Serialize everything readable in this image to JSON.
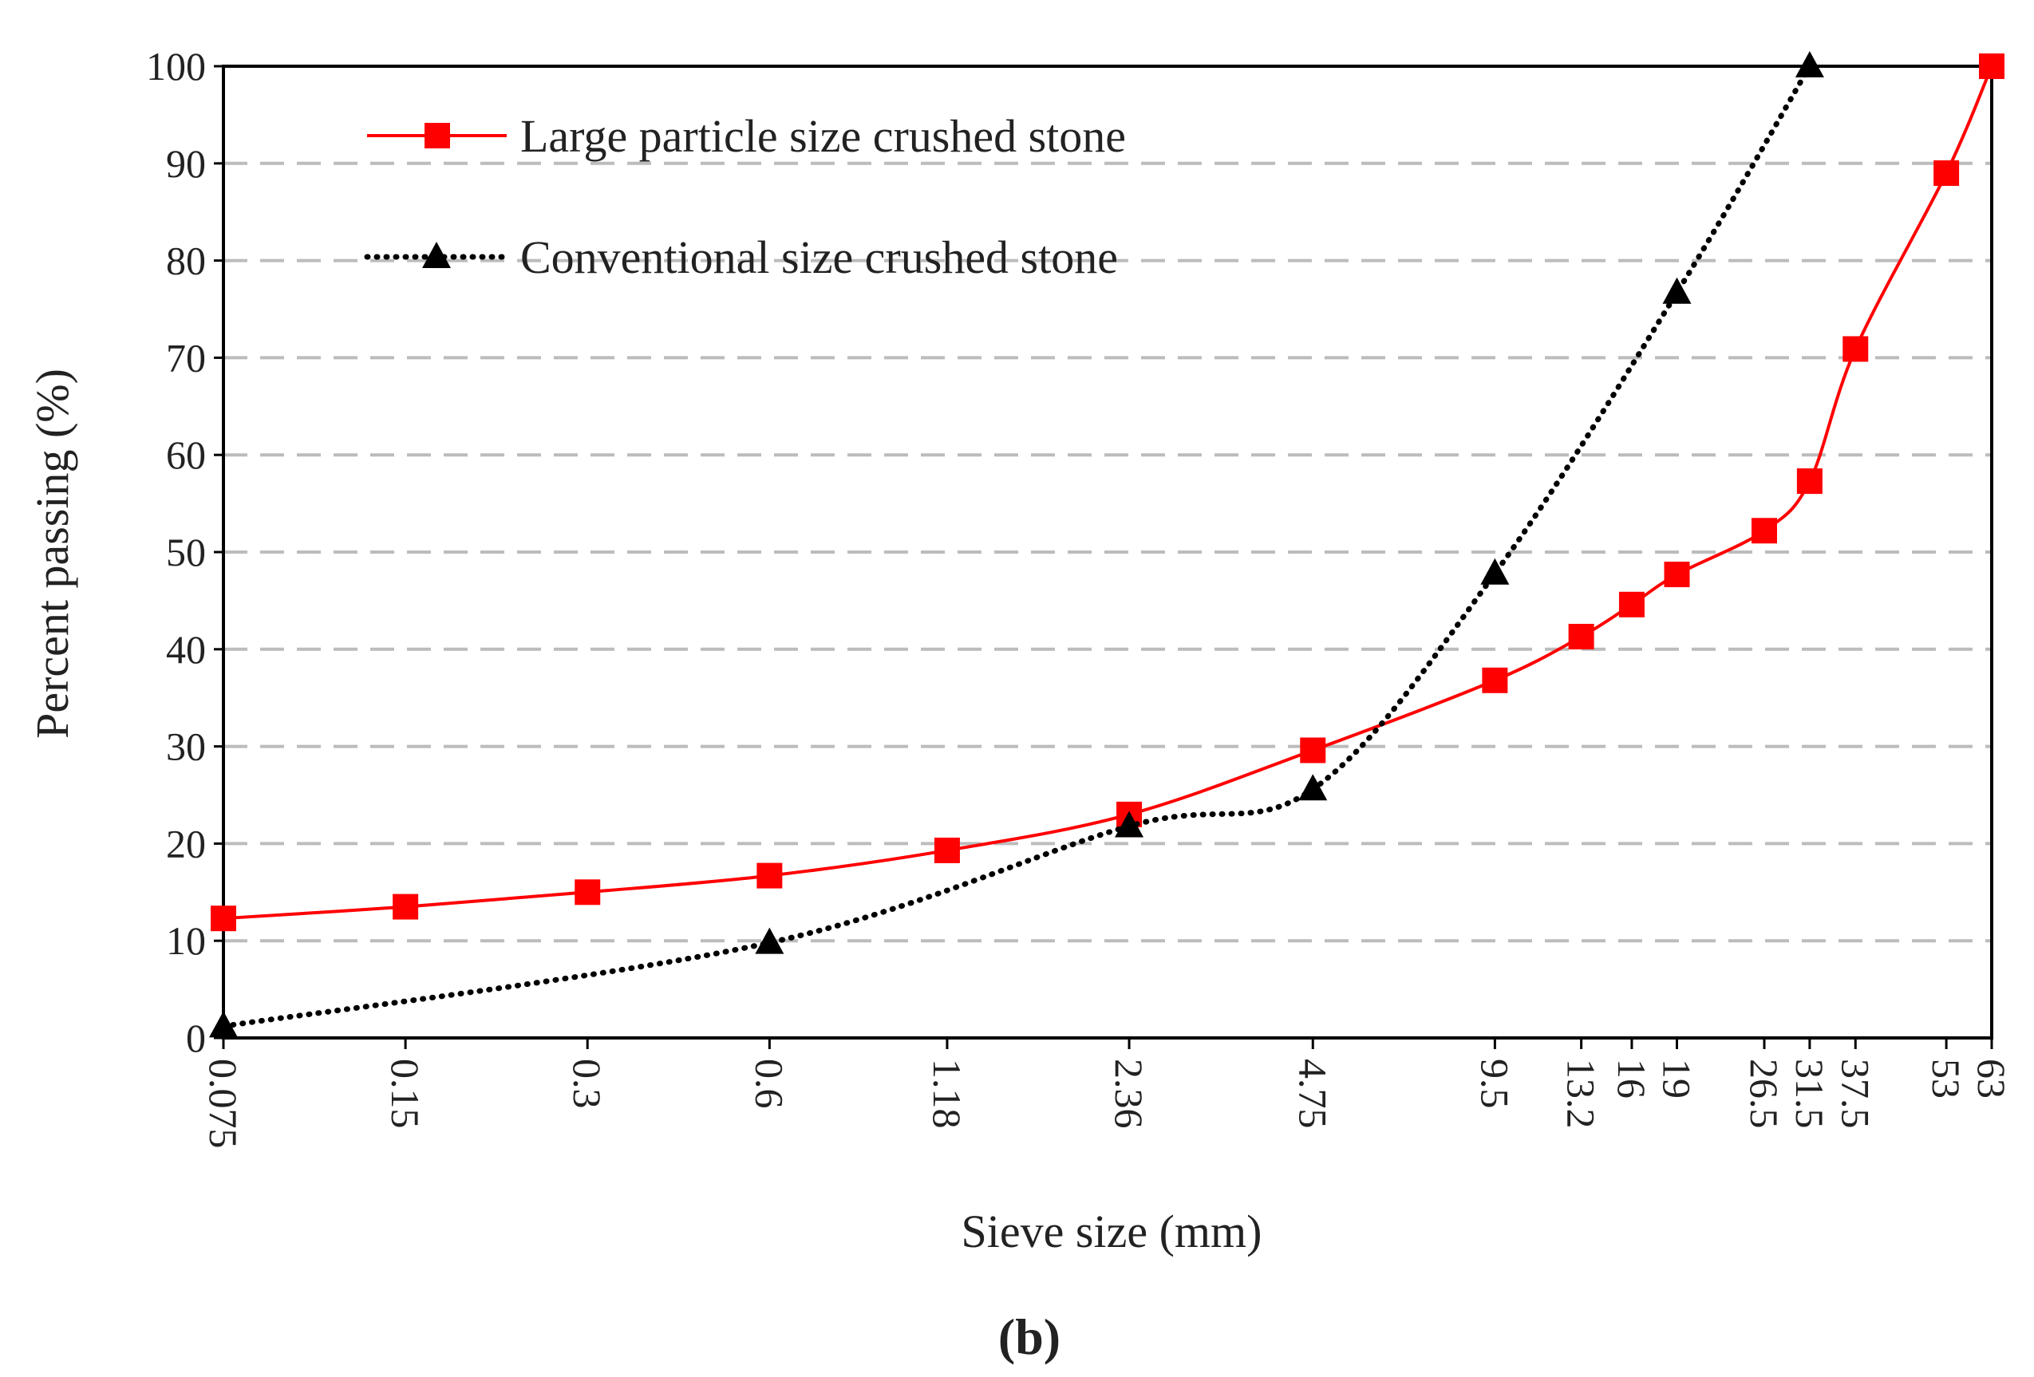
{
  "chart_data": {
    "type": "line",
    "xscale": "categorical-log",
    "xlabel": "Sieve size (mm)",
    "ylabel": "Percent passing (%)",
    "ylim": [
      0,
      100
    ],
    "yticks": [
      "0",
      "10",
      "20",
      "30",
      "40",
      "50",
      "60",
      "70",
      "80",
      "90",
      "100"
    ],
    "grid": "horizontal dashed",
    "legend_position": "top-left",
    "caption": "(b)",
    "x_ticks": [
      "0.075",
      "0.15",
      "0.3",
      "0.6",
      "1.18",
      "2.36",
      "4.75",
      "9.5",
      "13.2",
      "16",
      "19",
      "26.5",
      "31.5",
      "37.5",
      "53",
      "63"
    ],
    "series": [
      {
        "name": "Large particle size crushed stone",
        "color": "#ff0000",
        "marker": "square",
        "line": "solid",
        "x": [
          0.075,
          0.15,
          0.3,
          0.6,
          1.18,
          2.36,
          4.75,
          9.5,
          13.2,
          16,
          19,
          26.5,
          31.5,
          37.5,
          53,
          63
        ],
        "y": [
          12.3,
          13.5,
          15.0,
          16.7,
          19.3,
          23.0,
          29.6,
          36.8,
          41.3,
          44.6,
          47.7,
          52.2,
          57.3,
          70.9,
          89.0,
          100
        ]
      },
      {
        "name": "Conventional size crushed stone",
        "color": "#000000",
        "marker": "triangle",
        "line": "dotted",
        "x": [
          0.075,
          0.6,
          2.36,
          4.75,
          9.5,
          19,
          31.5
        ],
        "y": [
          1.2,
          9.8,
          21.8,
          25.6,
          47.8,
          76.7,
          100
        ]
      }
    ]
  }
}
